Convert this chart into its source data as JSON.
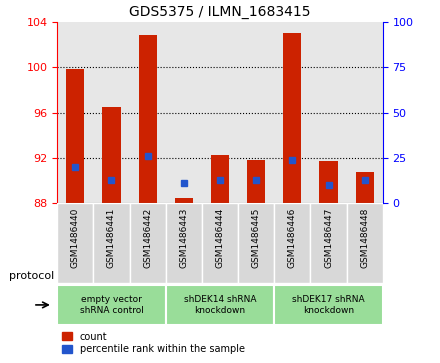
{
  "title": "GDS5375 / ILMN_1683415",
  "samples": [
    "GSM1486440",
    "GSM1486441",
    "GSM1486442",
    "GSM1486443",
    "GSM1486444",
    "GSM1486445",
    "GSM1486446",
    "GSM1486447",
    "GSM1486448"
  ],
  "counts": [
    99.8,
    96.5,
    102.8,
    88.5,
    92.3,
    91.8,
    103.0,
    91.7,
    90.8
  ],
  "percentiles": [
    20,
    13,
    26,
    11,
    13,
    13,
    24,
    10,
    13
  ],
  "ylim_left": [
    88,
    104
  ],
  "ylim_right": [
    0,
    100
  ],
  "yticks_left": [
    88,
    92,
    96,
    100,
    104
  ],
  "yticks_right": [
    0,
    25,
    50,
    75,
    100
  ],
  "bar_bottom": 88,
  "bar_color": "#cc2200",
  "percentile_color": "#2255cc",
  "groups": [
    {
      "label": "empty vector\nshRNA control",
      "start": 0,
      "end": 2
    },
    {
      "label": "shDEK14 shRNA\nknockdown",
      "start": 3,
      "end": 5
    },
    {
      "label": "shDEK17 shRNA\nknockdown",
      "start": 6,
      "end": 8
    }
  ],
  "group_color": "#99dd99",
  "sample_bg_color": "#d8d8d8",
  "protocol_label": "protocol",
  "legend_count_label": "count",
  "legend_percentile_label": "percentile rank within the sample"
}
